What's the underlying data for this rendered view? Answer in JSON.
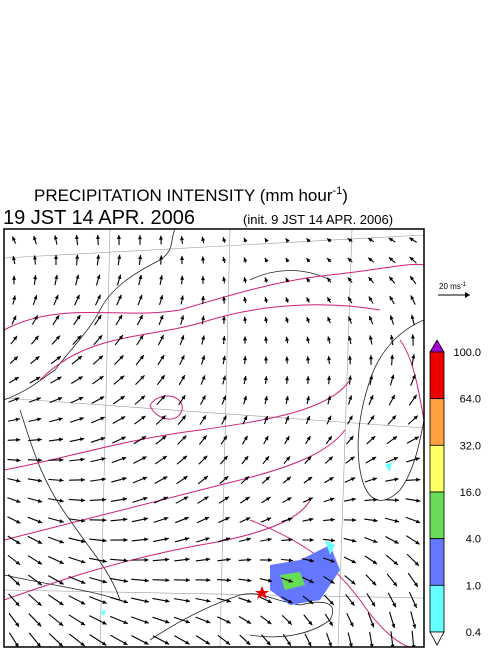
{
  "title": {
    "text": "PRECIPITATION INTENSITY (mm hour",
    "superscript": "-1",
    "close": ")"
  },
  "subtitle": {
    "time": "19 JST 14 APR. 2006",
    "init": "(init. 9 JST 14 APR. 2006)"
  },
  "wind_scale": {
    "text": "20 ms",
    "superscript": "-1"
  },
  "colorbar": {
    "labels": [
      "100.0",
      "64.0",
      "32.0",
      "16.0",
      "4.0",
      "1.0",
      "0.4"
    ],
    "colors": [
      "#ee0000",
      "#ffa040",
      "#ffff66",
      "#66dd55",
      "#6677ff",
      "#66ffff"
    ],
    "over_color": "#a000d0",
    "under_color": "#ffffff"
  }
}
